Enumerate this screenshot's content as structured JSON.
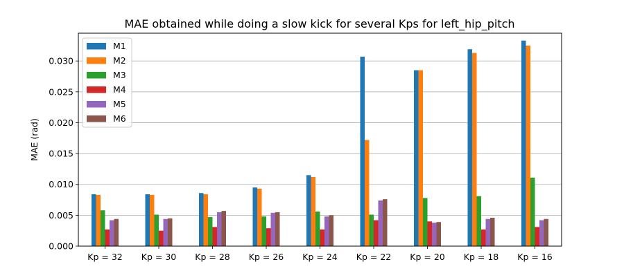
{
  "chart_data": {
    "type": "bar",
    "title": "MAE obtained while doing a slow kick for several Kps for left_hip_pitch",
    "xlabel": "",
    "ylabel": "MAE (rad)",
    "ylim": [
      0,
      0.0345
    ],
    "yticks": [
      "0.000",
      "0.005",
      "0.010",
      "0.015",
      "0.020",
      "0.025",
      "0.030"
    ],
    "grid": "y",
    "legend_position": "top-left",
    "categories": [
      "Kp = 32",
      "Kp = 30",
      "Kp = 28",
      "Kp = 26",
      "Kp = 24",
      "Kp = 22",
      "Kp = 20",
      "Kp = 18",
      "Kp = 16"
    ],
    "series": [
      {
        "name": "M1",
        "color": "#1f77b4",
        "values": [
          0.0084,
          0.0084,
          0.0086,
          0.0095,
          0.0115,
          0.0307,
          0.0285,
          0.0319,
          0.0333
        ]
      },
      {
        "name": "M2",
        "color": "#ff7f0e",
        "values": [
          0.0083,
          0.0083,
          0.0084,
          0.0093,
          0.0112,
          0.0172,
          0.0285,
          0.0313,
          0.0325
        ]
      },
      {
        "name": "M3",
        "color": "#2ca02c",
        "values": [
          0.0058,
          0.0051,
          0.0047,
          0.0048,
          0.0056,
          0.0051,
          0.0078,
          0.0081,
          0.0111
        ]
      },
      {
        "name": "M4",
        "color": "#d62728",
        "values": [
          0.0027,
          0.0025,
          0.0031,
          0.0029,
          0.0027,
          0.0042,
          0.004,
          0.0027,
          0.0031
        ]
      },
      {
        "name": "M5",
        "color": "#9467bd",
        "values": [
          0.0042,
          0.0044,
          0.0055,
          0.0054,
          0.0048,
          0.0074,
          0.0038,
          0.0044,
          0.0042
        ]
      },
      {
        "name": "M6",
        "color": "#8c564b",
        "values": [
          0.0044,
          0.0045,
          0.0057,
          0.0055,
          0.005,
          0.0076,
          0.0039,
          0.0046,
          0.0044
        ]
      }
    ]
  }
}
